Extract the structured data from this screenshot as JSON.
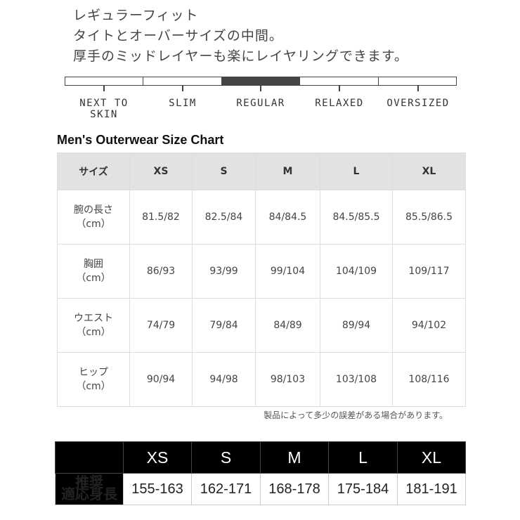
{
  "intro": {
    "lines": [
      "レギュラーフィット",
      "タイトとオーバーサイズの中間。",
      "厚手のミッドレイヤーも楽にレイヤリングできます。"
    ]
  },
  "fit_scale": {
    "labels": [
      "NEXT TO SKIN",
      "SLIM",
      "REGULAR",
      "RELAXED",
      "OVERSIZED"
    ],
    "selected": "REGULAR",
    "selected_color": "#444444"
  },
  "size_chart": {
    "title": "Men's Outerwear Size Chart",
    "headers": [
      "サイズ",
      "XS",
      "S",
      "M",
      "L",
      "XL"
    ],
    "rows": [
      {
        "label": "腕の長さ",
        "unit": "（cm）",
        "values": [
          "81.5/82",
          "82.5/84",
          "84/84.5",
          "84.5/85.5",
          "85.5/86.5"
        ]
      },
      {
        "label": "胸囲",
        "unit": "（cm）",
        "values": [
          "86/93",
          "93/99",
          "99/104",
          "104/109",
          "109/117"
        ]
      },
      {
        "label": "ウエスト",
        "unit": "（cm）",
        "values": [
          "74/79",
          "79/84",
          "84/89",
          "89/94",
          "94/102"
        ]
      },
      {
        "label": "ヒップ",
        "unit": "（cm）",
        "values": [
          "90/94",
          "94/98",
          "98/103",
          "103/108",
          "108/116"
        ]
      }
    ],
    "note": "製品によって多少の誤差がある場合があります。"
  },
  "height_chart": {
    "sizes": [
      "XS",
      "S",
      "M",
      "L",
      "XL"
    ],
    "label_line1": "推奨",
    "label_line2": "適応身長",
    "values": [
      "155-163",
      "162-171",
      "168-178",
      "175-184",
      "181-191"
    ]
  }
}
